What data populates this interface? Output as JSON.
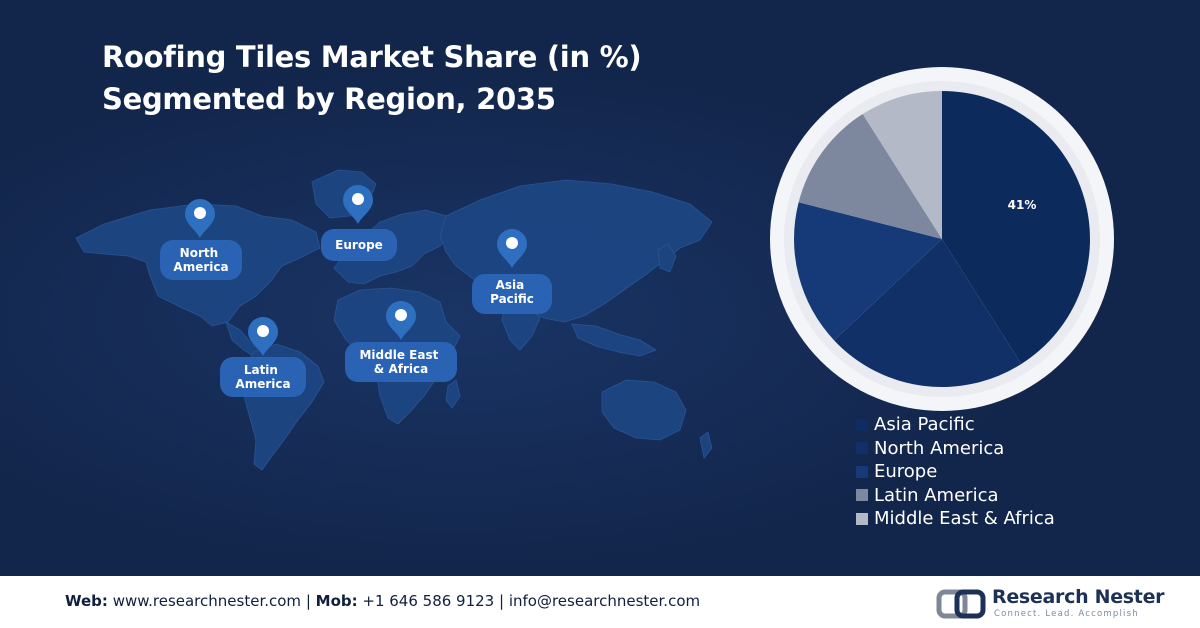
{
  "title": {
    "line1": "Roofing Tiles Market Share (in %)",
    "line2": "Segmented by Region, 2035"
  },
  "map_labels": [
    {
      "lines": [
        "North",
        "America"
      ]
    },
    {
      "lines": [
        "Europe"
      ]
    },
    {
      "lines": [
        "Asia",
        "Pacific"
      ]
    },
    {
      "lines": [
        "Middle East",
        "& Africa"
      ]
    },
    {
      "lines": [
        "Latin",
        "America"
      ]
    }
  ],
  "chart_data": {
    "type": "pie",
    "slices": [
      {
        "name": "Asia Pacific",
        "value": 41,
        "label": "41%",
        "color": "#0d2a5c"
      },
      {
        "name": "North America",
        "value": 22,
        "label": "",
        "color": "#113068"
      },
      {
        "name": "Europe",
        "value": 16,
        "label": "",
        "color": "#163a78"
      },
      {
        "name": "Latin America",
        "value": 12,
        "label": "",
        "color": "#7d889f"
      },
      {
        "name": "Middle East & Africa",
        "value": 9,
        "label": "",
        "color": "#b4b9c7"
      }
    ],
    "legend_placement": "bottom-right"
  },
  "footer": {
    "web_label": "Web:",
    "web_value": " www.researchnester.com",
    "sep1": " | ",
    "mob_label": "Mob:",
    "mob_value": " +1 646 586 9123",
    "sep2": " | ",
    "email": "info@researchnester.com"
  },
  "logo": {
    "name": "Research Nester",
    "tagline": "Connect. Lead. Accomplish"
  },
  "colors": {
    "background": "#12254a",
    "map_land": "#1e4b8a",
    "pin": "#2f6fc0",
    "pie_ring": "#f4f5f8"
  }
}
